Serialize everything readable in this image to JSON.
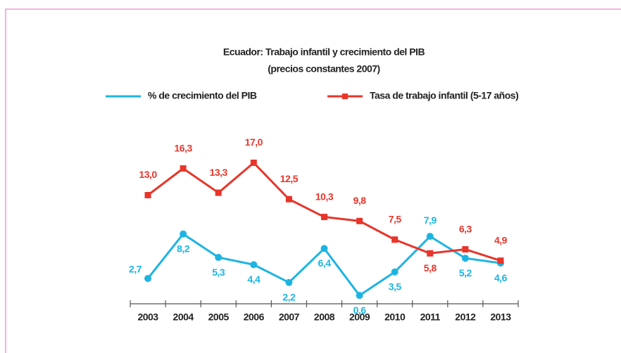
{
  "chart_data": {
    "type": "line",
    "title": "Ecuador: Trabajo infantil y crecimiento del PIB",
    "subtitle": "(precios constantes 2007)",
    "categories": [
      "2003",
      "2004",
      "2005",
      "2006",
      "2007",
      "2008",
      "2009",
      "2010",
      "2011",
      "2012",
      "2013"
    ],
    "series": [
      {
        "name": "% de crecimiento del PIB",
        "color": "#1db4e2",
        "marker": "circle",
        "values": [
          2.7,
          8.2,
          5.3,
          4.4,
          2.2,
          6.4,
          0.6,
          3.5,
          7.9,
          5.2,
          4.6
        ],
        "value_labels": [
          "2,7",
          "8,2",
          "5,3",
          "4,4",
          "2,2",
          "6,4",
          "0,6",
          "3,5",
          "7,9",
          "5,2",
          "4,6"
        ]
      },
      {
        "name": "Tasa de trabajo infantil (5-17 años)",
        "color": "#e8352a",
        "marker": "square",
        "values": [
          13.0,
          16.3,
          13.3,
          17.0,
          12.5,
          10.3,
          9.8,
          7.5,
          5.8,
          6.3,
          4.9
        ],
        "value_labels": [
          "13,0",
          "16,3",
          "13,3",
          "17,0",
          "12,5",
          "10,3",
          "9,8",
          "7,5",
          "5,8",
          "6,3",
          "4,9"
        ]
      }
    ]
  }
}
